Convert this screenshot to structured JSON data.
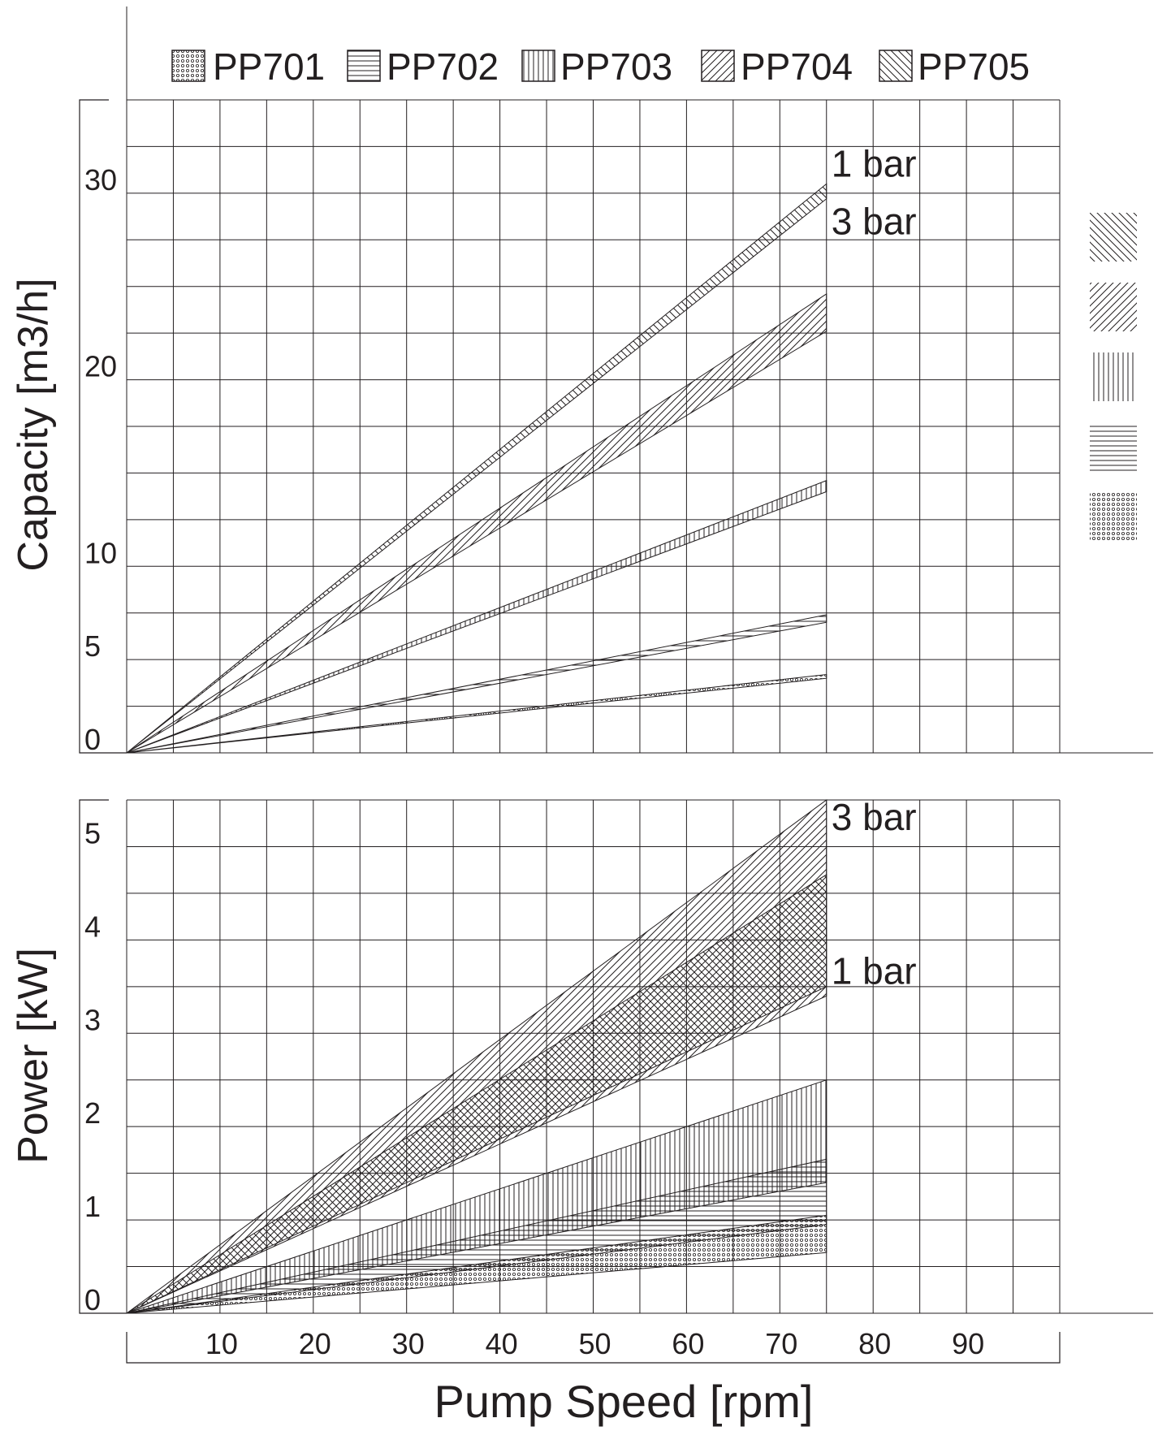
{
  "legend": [
    {
      "name": "PP701",
      "pattern": "dots"
    },
    {
      "name": "PP702",
      "pattern": "horizontal"
    },
    {
      "name": "PP703",
      "pattern": "vertical"
    },
    {
      "name": "PP704",
      "pattern": "diagonal-up"
    },
    {
      "name": "PP705",
      "pattern": "diagonal-down"
    }
  ],
  "xlabel": "Pump Speed [rpm]",
  "x_ticks": [
    10,
    20,
    30,
    40,
    50,
    60,
    70,
    80,
    90
  ],
  "chart_data": [
    {
      "type": "area",
      "ylabel": "Capacity [m3/h]",
      "y_ticks": [
        0,
        5,
        10,
        20,
        30
      ],
      "xlim": [
        0,
        100
      ],
      "ylim": [
        0,
        35
      ],
      "annotations": [
        {
          "text": "1 bar",
          "x": 75,
          "y": 31.5
        },
        {
          "text": "3 bar",
          "x": 75,
          "y": 28.4
        }
      ],
      "series": [
        {
          "name": "PP701",
          "pattern": "dots",
          "x": [
            0,
            75
          ],
          "low": [
            0,
            4.0
          ],
          "high": [
            0,
            4.2
          ]
        },
        {
          "name": "PP702",
          "pattern": "horizontal",
          "x": [
            0,
            75
          ],
          "low": [
            0,
            7.0
          ],
          "high": [
            0,
            7.4
          ]
        },
        {
          "name": "PP703",
          "pattern": "vertical",
          "x": [
            0,
            75
          ],
          "low": [
            0,
            14.0
          ],
          "high": [
            0,
            14.6
          ]
        },
        {
          "name": "PP704",
          "pattern": "diagonal-up",
          "x": [
            0,
            75
          ],
          "low": [
            0,
            22.6
          ],
          "high": [
            0,
            24.6
          ]
        },
        {
          "name": "PP705",
          "pattern": "diagonal-down",
          "x": [
            0,
            75
          ],
          "low": [
            0,
            29.7
          ],
          "high": [
            0,
            30.5
          ]
        }
      ]
    },
    {
      "type": "area",
      "ylabel": "Power [kW]",
      "y_ticks": [
        0,
        1,
        2,
        3,
        4,
        5
      ],
      "xlim": [
        0,
        100
      ],
      "ylim": [
        0,
        5.5
      ],
      "annotations": [
        {
          "text": "3 bar",
          "x": 75,
          "y": 5.3
        },
        {
          "text": "1 bar",
          "x": 75,
          "y": 3.65
        }
      ],
      "series": [
        {
          "name": "PP701",
          "pattern": "dots",
          "x": [
            0,
            75
          ],
          "low": [
            0,
            0.65
          ],
          "high": [
            0,
            1.05
          ]
        },
        {
          "name": "PP702",
          "pattern": "horizontal",
          "x": [
            0,
            75
          ],
          "low": [
            0,
            0.95
          ],
          "high": [
            0,
            1.65
          ]
        },
        {
          "name": "PP703",
          "pattern": "vertical",
          "x": [
            0,
            75
          ],
          "low": [
            0,
            1.4
          ],
          "high": [
            0,
            2.5
          ]
        },
        {
          "name": "PP704",
          "pattern": "diagonal-up",
          "x": [
            0,
            75
          ],
          "low": [
            0,
            3.4
          ],
          "high": [
            0,
            5.5
          ]
        },
        {
          "name": "PP705",
          "pattern": "diagonal-down",
          "x": [
            0,
            75
          ],
          "low": [
            0,
            3.5
          ],
          "high": [
            0,
            4.7
          ]
        }
      ]
    }
  ]
}
